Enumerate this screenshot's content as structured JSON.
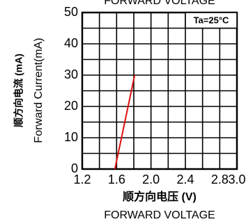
{
  "chart_data": {
    "type": "line",
    "title": "FORWARD VOLTAGE",
    "x_label_cn": "顺方向电压 (V)",
    "x_label": "FORWARD VOLTAGE",
    "y_label_cn": "顺方向电流 (mA)",
    "y_label": "Forward Current(mA)",
    "annotation": "Ta=25°C",
    "x": [
      1.58,
      1.81
    ],
    "series": [
      {
        "color": "#e01010",
        "values": [
          0,
          30
        ]
      }
    ],
    "xlim": [
      1.2,
      3.0
    ],
    "xticks": [
      1.2,
      1.6,
      {
        "value": 2,
        "label": "2.0"
      },
      2.4,
      2.8,
      {
        "value": 3,
        "label": "3.0"
      }
    ],
    "ylim": [
      0,
      50
    ],
    "yticks": [
      0,
      10,
      20,
      30,
      40,
      50
    ],
    "xgrid": [
      1.2,
      1.4,
      1.6,
      1.8,
      2,
      2.2,
      2.4,
      2.6,
      2.8,
      3
    ],
    "ygrid": [
      0,
      5,
      10,
      15,
      20,
      25,
      30,
      35,
      40,
      45,
      50
    ],
    "grid": true
  }
}
